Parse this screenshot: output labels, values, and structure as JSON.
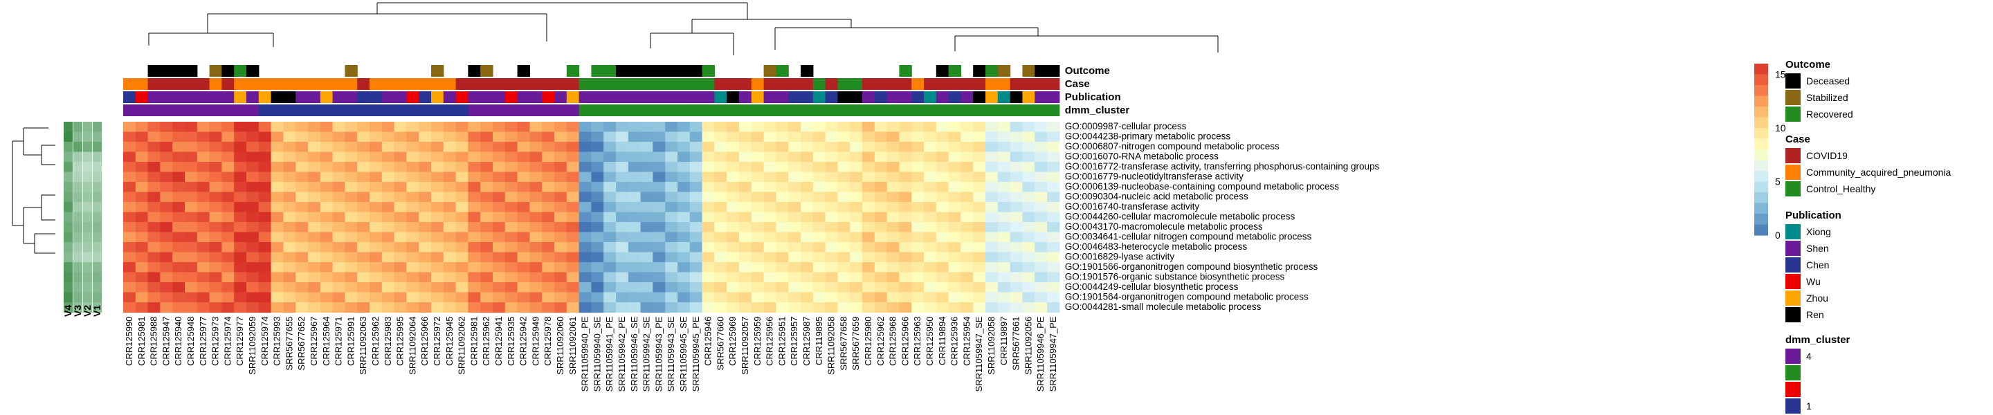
{
  "chart_data": {
    "type": "heatmap",
    "color_scale": {
      "ticks": [
        "15",
        "10",
        "5",
        "0"
      ],
      "stops": [
        "#d73027",
        "#f46d43",
        "#fdae61",
        "#fee090",
        "#ffffbf",
        "#e0f3f8",
        "#abd9e9",
        "#74add1",
        "#4575b4"
      ],
      "min": 0,
      "max": 16
    },
    "annotation_tracks": [
      "Outcome",
      "Case",
      "Publication",
      "dmm_cluster"
    ],
    "legends": [
      {
        "title": "Outcome",
        "items": [
          {
            "label": "Deceased",
            "color": "#000000"
          },
          {
            "label": "Stabilized",
            "color": "#8b6914"
          },
          {
            "label": "Recovered",
            "color": "#228b22"
          }
        ]
      },
      {
        "title": "Case",
        "items": [
          {
            "label": "COVID19",
            "color": "#b22222"
          },
          {
            "label": "Community_acquired_pneumonia",
            "color": "#ff7f00"
          },
          {
            "label": "Control_Healthy",
            "color": "#228b22"
          }
        ]
      },
      {
        "title": "Publication",
        "items": [
          {
            "label": "Xiong",
            "color": "#008b8b"
          },
          {
            "label": "Shen",
            "color": "#6a1b9a"
          },
          {
            "label": "Chen",
            "color": "#283593"
          },
          {
            "label": "Wu",
            "color": "#ee0000"
          },
          {
            "label": "Zhou",
            "color": "#ffa500"
          },
          {
            "label": "Ren",
            "color": "#000000"
          }
        ]
      },
      {
        "title": "dmm_cluster",
        "items": [
          {
            "label": "4",
            "color": "#6a1b9a"
          },
          {
            "label": "",
            "color": "#228b22"
          },
          {
            "label": "",
            "color": "#ee0000"
          },
          {
            "label": "1",
            "color": "#283593"
          }
        ]
      }
    ],
    "row_labels": [
      "GO:0009987-cellular process",
      "GO:0044238-primary metabolic process",
      "GO:0006807-nitrogen compound metabolic process",
      "GO:0016070-RNA metabolic process",
      "GO:0016772-transferase activity, transferring phosphorus-containing groups",
      "GO:0016779-nucleotidyltransferase activity",
      "GO:0006139-nucleobase-containing compound metabolic process",
      "GO:0090304-nucleic acid metabolic process",
      "GO:0016740-transferase activity",
      "GO:0044260-cellular macromolecule metabolic process",
      "GO:0043170-macromolecule metabolic process",
      "GO:0034641-cellular nitrogen compound metabolic process",
      "GO:0046483-heterocycle metabolic process",
      "GO:0016829-lyase activity",
      "GO:1901566-organonitrogen compound biosynthetic process",
      "GO:1901576-organic substance biosynthetic process",
      "GO:0044249-cellular biosynthetic process",
      "GO:1901564-organonitrogen compound metabolic process",
      "GO:0044281-small molecule metabolic process"
    ],
    "side_columns": [
      "V4",
      "V3",
      "V2",
      "V1"
    ],
    "side_values": [
      [
        0.2,
        0.45,
        0.55,
        0.45
      ],
      [
        0.15,
        0.55,
        0.6,
        0.55
      ],
      [
        0.4,
        0.35,
        0.45,
        0.4
      ],
      [
        0.5,
        0.7,
        0.75,
        0.7
      ],
      [
        0.35,
        0.8,
        0.85,
        0.8
      ],
      [
        0.55,
        0.75,
        0.8,
        0.75
      ],
      [
        0.45,
        0.65,
        0.7,
        0.65
      ],
      [
        0.4,
        0.6,
        0.65,
        0.6
      ],
      [
        0.3,
        0.7,
        0.75,
        0.7
      ],
      [
        0.45,
        0.6,
        0.65,
        0.6
      ],
      [
        0.4,
        0.55,
        0.6,
        0.55
      ],
      [
        0.35,
        0.6,
        0.65,
        0.6
      ],
      [
        0.5,
        0.7,
        0.7,
        0.7
      ],
      [
        0.55,
        0.75,
        0.8,
        0.75
      ],
      [
        0.3,
        0.55,
        0.6,
        0.55
      ],
      [
        0.25,
        0.5,
        0.55,
        0.5
      ],
      [
        0.3,
        0.55,
        0.6,
        0.55
      ],
      [
        0.2,
        0.5,
        0.55,
        0.5
      ],
      [
        0.35,
        0.6,
        0.65,
        0.6
      ]
    ],
    "columns": [
      {
        "label": "CRR125990",
        "outcome": "",
        "case": "Community_acquired_pneumonia",
        "pub": "Chen",
        "cl": "4",
        "v": 14
      },
      {
        "label": "CRR125981",
        "outcome": "",
        "case": "Community_acquired_pneumonia",
        "pub": "Wu",
        "cl": "4",
        "v": 14
      },
      {
        "label": "CRR125988",
        "outcome": "Deceased",
        "case": "COVID19",
        "pub": "Shen",
        "cl": "4",
        "v": 14.5
      },
      {
        "label": "CRR125947",
        "outcome": "Deceased",
        "case": "COVID19",
        "pub": "Shen",
        "cl": "4",
        "v": 14.5
      },
      {
        "label": "CRR125940",
        "outcome": "Deceased",
        "case": "COVID19",
        "pub": "Shen",
        "cl": "4",
        "v": 14.5
      },
      {
        "label": "CRR125948",
        "outcome": "Deceased",
        "case": "COVID19",
        "pub": "Shen",
        "cl": "4",
        "v": 14
      },
      {
        "label": "CRR125977",
        "outcome": "",
        "case": "COVID19",
        "pub": "Shen",
        "cl": "4",
        "v": 14
      },
      {
        "label": "CRR125973",
        "outcome": "Stabilized",
        "case": "Community_acquired_pneumonia",
        "pub": "Shen",
        "cl": "4",
        "v": 14
      },
      {
        "label": "CRR125974",
        "outcome": "Deceased",
        "case": "COVID19",
        "pub": "Shen",
        "cl": "4",
        "v": 14
      },
      {
        "label": "CRR125977",
        "outcome": "Recovered",
        "case": "Community_acquired_pneumonia",
        "pub": "Zhou",
        "cl": "4",
        "v": 15.5
      },
      {
        "label": "SRR11092059",
        "outcome": "Deceased",
        "case": "Community_acquired_pneumonia",
        "pub": "Shen",
        "cl": "4",
        "v": 15.5
      },
      {
        "label": "CRR125974",
        "outcome": "",
        "case": "Community_acquired_pneumonia",
        "pub": "Zhou",
        "cl": "1",
        "v": 15.5
      },
      {
        "label": "CRR125993",
        "outcome": "",
        "case": "Community_acquired_pneumonia",
        "pub": "Ren",
        "cl": "1",
        "v": 11.5
      },
      {
        "label": "SRR5677655",
        "outcome": "",
        "case": "Community_acquired_pneumonia",
        "pub": "Ren",
        "cl": "1",
        "v": 11.5
      },
      {
        "label": "SRR5677652",
        "outcome": "",
        "case": "Community_acquired_pneumonia",
        "pub": "Shen",
        "cl": "1",
        "v": 11.5
      },
      {
        "label": "CRR125967",
        "outcome": "",
        "case": "Community_acquired_pneumonia",
        "pub": "Shen",
        "cl": "1",
        "v": 11.5
      },
      {
        "label": "CRR125964",
        "outcome": "",
        "case": "Community_acquired_pneumonia",
        "pub": "Zhou",
        "cl": "1",
        "v": 11.5
      },
      {
        "label": "CRR125971",
        "outcome": "",
        "case": "Community_acquired_pneumonia",
        "pub": "Shen",
        "cl": "1",
        "v": 11.5
      },
      {
        "label": "CRR125991",
        "outcome": "Stabilized",
        "case": "Community_acquired_pneumonia",
        "pub": "Shen",
        "cl": "1",
        "v": 11.5
      },
      {
        "label": "SRR11092063",
        "outcome": "",
        "case": "COVID19",
        "pub": "Chen",
        "cl": "1",
        "v": 11.5
      },
      {
        "label": "CRR125962",
        "outcome": "",
        "case": "Community_acquired_pneumonia",
        "pub": "Chen",
        "cl": "1",
        "v": 11.5
      },
      {
        "label": "CRR125983",
        "outcome": "",
        "case": "Community_acquired_pneumonia",
        "pub": "Shen",
        "cl": "1",
        "v": 11.5
      },
      {
        "label": "CRR125995",
        "outcome": "",
        "case": "Community_acquired_pneumonia",
        "pub": "Shen",
        "cl": "1",
        "v": 11.5
      },
      {
        "label": "SRR11092064",
        "outcome": "",
        "case": "Community_acquired_pneumonia",
        "pub": "Wu",
        "cl": "1",
        "v": 11.5
      },
      {
        "label": "CRR125966",
        "outcome": "",
        "case": "Community_acquired_pneumonia",
        "pub": "Chen",
        "cl": "1",
        "v": 11.5
      },
      {
        "label": "CRR125972",
        "outcome": "Stabilized",
        "case": "Community_acquired_pneumonia",
        "pub": "Zhou",
        "cl": "1",
        "v": 11.5
      },
      {
        "label": "CRR125945",
        "outcome": "",
        "case": "Community_acquired_pneumonia",
        "pub": "Shen",
        "cl": "1",
        "v": 11.5
      },
      {
        "label": "SRR11092062",
        "outcome": "",
        "case": "COVID19",
        "pub": "Wu",
        "cl": "1",
        "v": 11.5
      },
      {
        "label": "CRR125981",
        "outcome": "Deceased",
        "case": "COVID19",
        "pub": "Shen",
        "cl": "4",
        "v": 13
      },
      {
        "label": "CRR125962",
        "outcome": "Stabilized",
        "case": "COVID19",
        "pub": "Shen",
        "cl": "4",
        "v": 13
      },
      {
        "label": "CRR125941",
        "outcome": "",
        "case": "COVID19",
        "pub": "Shen",
        "cl": "4",
        "v": 13
      },
      {
        "label": "CRR125935",
        "outcome": "",
        "case": "COVID19",
        "pub": "Wu",
        "cl": "4",
        "v": 13
      },
      {
        "label": "CRR125942",
        "outcome": "Deceased",
        "case": "COVID19",
        "pub": "Shen",
        "cl": "4",
        "v": 13
      },
      {
        "label": "CRR125949",
        "outcome": "",
        "case": "COVID19",
        "pub": "Shen",
        "cl": "4",
        "v": 13
      },
      {
        "label": "CRR125978",
        "outcome": "",
        "case": "COVID19",
        "pub": "Wu",
        "cl": "4",
        "v": 13
      },
      {
        "label": "SRR11092060",
        "outcome": "",
        "case": "COVID19",
        "pub": "Shen",
        "cl": "4",
        "v": 13
      },
      {
        "label": "SRR11092061",
        "outcome": "Recovered",
        "case": "COVID19",
        "pub": "Zhou",
        "cl": "4",
        "v": 13
      },
      {
        "label": "SRR11059940_PE",
        "outcome": "",
        "case": "Control_Healthy",
        "pub": "Shen",
        "cl": "3",
        "v": 1
      },
      {
        "label": "SRR11059940_SE",
        "outcome": "Recovered",
        "case": "Control_Healthy",
        "pub": "Shen",
        "cl": "3",
        "v": 1
      },
      {
        "label": "SRR11059941_PE",
        "outcome": "Recovered",
        "case": "Control_Healthy",
        "pub": "Shen",
        "cl": "3",
        "v": 3
      },
      {
        "label": "SRR11059942_PE",
        "outcome": "Deceased",
        "case": "Control_Healthy",
        "pub": "Shen",
        "cl": "3",
        "v": 3.5
      },
      {
        "label": "SRR11059946_SE",
        "outcome": "Deceased",
        "case": "Control_Healthy",
        "pub": "Shen",
        "cl": "3",
        "v": 3
      },
      {
        "label": "SRR11059942_SE",
        "outcome": "Deceased",
        "case": "Control_Healthy",
        "pub": "Shen",
        "cl": "3",
        "v": 2.5
      },
      {
        "label": "SRR11059943_PE",
        "outcome": "Deceased",
        "case": "Control_Healthy",
        "pub": "Shen",
        "cl": "3",
        "v": 2
      },
      {
        "label": "SRR11059943_SE",
        "outcome": "Deceased",
        "case": "Control_Healthy",
        "pub": "Shen",
        "cl": "3",
        "v": 3
      },
      {
        "label": "SRR11059945_SE",
        "outcome": "Deceased",
        "case": "Control_Healthy",
        "pub": "Shen",
        "cl": "3",
        "v": 3
      },
      {
        "label": "SRR11059945_PE",
        "outcome": "Deceased",
        "case": "Control_Healthy",
        "pub": "Shen",
        "cl": "3",
        "v": 3.5
      },
      {
        "label": "CRR125946",
        "outcome": "Recovered",
        "case": "Control_Healthy",
        "pub": "Shen",
        "cl": "3",
        "v": 9
      },
      {
        "label": "SRR5677660",
        "outcome": "",
        "case": "COVID19",
        "pub": "Xiong",
        "cl": "3",
        "v": 9
      },
      {
        "label": "CRR125969",
        "outcome": "",
        "case": "COVID19",
        "pub": "Ren",
        "cl": "3",
        "v": 9
      },
      {
        "label": "SRR11092057",
        "outcome": "",
        "case": "COVID19",
        "pub": "Shen",
        "cl": "3",
        "v": 9
      },
      {
        "label": "CRR125959",
        "outcome": "",
        "case": "Community_acquired_pneumonia",
        "pub": "Zhou",
        "cl": "3",
        "v": 9
      },
      {
        "label": "CRR125956",
        "outcome": "Stabilized",
        "case": "COVID19",
        "pub": "Shen",
        "cl": "3",
        "v": 9
      },
      {
        "label": "CRR125951",
        "outcome": "Recovered",
        "case": "COVID19",
        "pub": "Shen",
        "cl": "3",
        "v": 9
      },
      {
        "label": "CRR125957",
        "outcome": "",
        "case": "COVID19",
        "pub": "Chen",
        "cl": "3",
        "v": 9
      },
      {
        "label": "CRR125987",
        "outcome": "Deceased",
        "case": "COVID19",
        "pub": "Chen",
        "cl": "3",
        "v": 9
      },
      {
        "label": "CRR119895",
        "outcome": "",
        "case": "Control_Healthy",
        "pub": "Xiong",
        "cl": "3",
        "v": 9
      },
      {
        "label": "SRR11092058",
        "outcome": "",
        "case": "COVID19",
        "pub": "Chen",
        "cl": "3",
        "v": 9
      },
      {
        "label": "SRR5677658",
        "outcome": "",
        "case": "Control_Healthy",
        "pub": "Ren",
        "cl": "3",
        "v": 9
      },
      {
        "label": "SRR5677659",
        "outcome": "",
        "case": "Control_Healthy",
        "pub": "Ren",
        "cl": "3",
        "v": 9
      },
      {
        "label": "CRR125980",
        "outcome": "",
        "case": "COVID19",
        "pub": "Shen",
        "cl": "3",
        "v": 10
      },
      {
        "label": "CRR125962",
        "outcome": "",
        "case": "COVID19",
        "pub": "Chen",
        "cl": "3",
        "v": 10
      },
      {
        "label": "CRR125968",
        "outcome": "",
        "case": "COVID19",
        "pub": "Shen",
        "cl": "3",
        "v": 10
      },
      {
        "label": "CRR125966",
        "outcome": "Recovered",
        "case": "COVID19",
        "pub": "Shen",
        "cl": "3",
        "v": 10
      },
      {
        "label": "CRR125963",
        "outcome": "",
        "case": "Community_acquired_pneumonia",
        "pub": "Chen",
        "cl": "3",
        "v": 9
      },
      {
        "label": "CRR125950",
        "outcome": "",
        "case": "COVID19",
        "pub": "Xiong",
        "cl": "3",
        "v": 9
      },
      {
        "label": "CRR119894",
        "outcome": "Deceased",
        "case": "COVID19",
        "pub": "Shen",
        "cl": "3",
        "v": 9
      },
      {
        "label": "CRR125936",
        "outcome": "Recovered",
        "case": "COVID19",
        "pub": "Chen",
        "cl": "3",
        "v": 9
      },
      {
        "label": "CRR125954",
        "outcome": "",
        "case": "COVID19",
        "pub": "Shen",
        "cl": "3",
        "v": 9
      },
      {
        "label": "SRR11059947_SE",
        "outcome": "Deceased",
        "case": "COVID19",
        "pub": "Ren",
        "cl": "3",
        "v": 9
      },
      {
        "label": "SRR11092058",
        "outcome": "Recovered",
        "case": "Community_acquired_pneumonia",
        "pub": "Zhou",
        "cl": "3",
        "v": 6
      },
      {
        "label": "CRR119897",
        "outcome": "Stabilized",
        "case": "Community_acquired_pneumonia",
        "pub": "Xiong",
        "cl": "3",
        "v": 6
      },
      {
        "label": "SRR5677661",
        "outcome": "",
        "case": "COVID19",
        "pub": "Ren",
        "cl": "3",
        "v": 6
      },
      {
        "label": "SRR11092056",
        "outcome": "Stabilized",
        "case": "COVID19",
        "pub": "Zhou",
        "cl": "3",
        "v": 6
      },
      {
        "label": "SRR11059946_PE",
        "outcome": "Deceased",
        "case": "COVID19",
        "pub": "Shen",
        "cl": "3",
        "v": 6
      },
      {
        "label": "SRR11059947_PE",
        "outcome": "Deceased",
        "case": "COVID19",
        "pub": "Shen",
        "cl": "3",
        "v": 6
      }
    ]
  }
}
